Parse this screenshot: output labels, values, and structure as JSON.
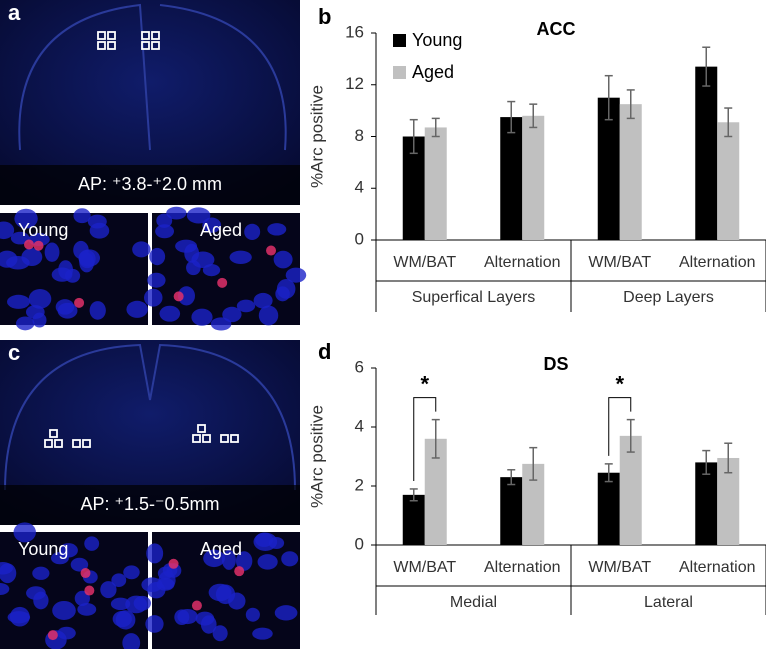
{
  "panels": [
    {
      "label": "a",
      "region": "AP: ⁺3.8-⁺2.0 mm",
      "young": "Young",
      "aged": "Aged"
    },
    {
      "label": "c",
      "region": "AP: ⁺1.5-⁻0.5mm",
      "young": "Young",
      "aged": "Aged"
    }
  ],
  "chart_data": [
    {
      "type": "bar",
      "panel": "b",
      "title": "ACC",
      "y_label": "%Arc positive",
      "categories": [
        "WM/BAT",
        "Alternation",
        "WM/BAT",
        "Alternation"
      ],
      "groups": [
        "Superfical Layers",
        "Deep Layers"
      ],
      "series": [
        {
          "name": "Young",
          "color": "#000000",
          "values": [
            8.0,
            9.5,
            11.0,
            13.4
          ],
          "errors": [
            1.3,
            1.2,
            1.7,
            1.5
          ]
        },
        {
          "name": "Aged",
          "color": "#c0c0c0",
          "values": [
            8.7,
            9.6,
            10.5,
            9.1
          ],
          "errors": [
            0.7,
            0.9,
            1.1,
            1.1
          ]
        }
      ],
      "ylim": [
        0,
        16
      ],
      "yticks": [
        0,
        4,
        8,
        12,
        16
      ],
      "legend": true
    },
    {
      "type": "bar",
      "panel": "d",
      "title": "DS",
      "y_label": "%Arc positive",
      "categories": [
        "WM/BAT",
        "Alternation",
        "WM/BAT",
        "Alternation"
      ],
      "groups": [
        "Medial",
        "Lateral"
      ],
      "series": [
        {
          "name": "Young",
          "color": "#000000",
          "values": [
            1.7,
            2.3,
            2.45,
            2.8
          ],
          "errors": [
            0.2,
            0.25,
            0.3,
            0.4
          ]
        },
        {
          "name": "Aged",
          "color": "#c0c0c0",
          "values": [
            3.6,
            2.75,
            3.7,
            2.95
          ],
          "errors": [
            0.65,
            0.55,
            0.55,
            0.5
          ]
        }
      ],
      "ylim": [
        0,
        6
      ],
      "yticks": [
        0,
        2,
        4,
        6
      ],
      "legend": false,
      "annotations": [
        {
          "text": "*",
          "category": 0
        },
        {
          "text": "*",
          "category": 2
        }
      ]
    }
  ]
}
